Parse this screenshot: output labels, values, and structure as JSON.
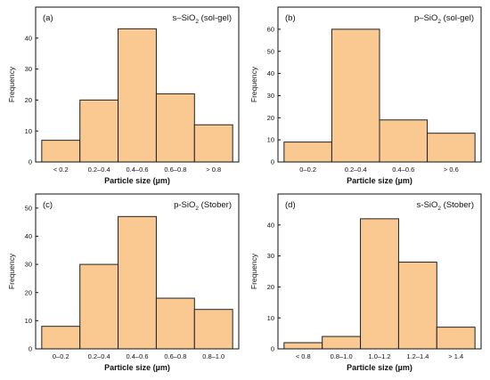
{
  "bar_color": "#f9c991",
  "chart_data": [
    {
      "type": "bar",
      "panel": "(a)",
      "title": "s–SiO2 (sol-gel)",
      "title_parts": {
        "pre": "s–SiO",
        "sub": "2",
        "post": " (sol-gel)"
      },
      "categories": [
        "< 0.2",
        "0.2–0.4",
        "0.4–0.6",
        "0.6–0.8",
        "> 0.8"
      ],
      "values": [
        7,
        20,
        43,
        22,
        12
      ],
      "xlabel": "Particle size (µm)",
      "ylabel": "Frequency",
      "ylim": [
        0,
        50
      ],
      "yticks": [
        0,
        10,
        20,
        30,
        40
      ],
      "ytick_labels": [
        "0",
        "10",
        "20",
        "30",
        "40"
      ],
      "grid": false
    },
    {
      "type": "bar",
      "panel": "(b)",
      "title": "p–SiO2 (sol-gel)",
      "title_parts": {
        "pre": "p–SiO",
        "sub": "2",
        "post": " (sol-gel)"
      },
      "categories": [
        "0–0.2",
        "0.2–0.4",
        "0.4–0.6",
        "> 0.6"
      ],
      "values": [
        9,
        60,
        19,
        13
      ],
      "xlabel": "Particle size (µm)",
      "ylabel": "Frequency",
      "ylim": [
        0,
        70
      ],
      "yticks": [
        0,
        10,
        20,
        30,
        40,
        50,
        60
      ],
      "ytick_labels": [
        "0",
        "10",
        "20",
        "30",
        "40",
        "50",
        "60"
      ],
      "grid": false
    },
    {
      "type": "bar",
      "panel": "(c)",
      "title": "p-SiO2 (Stober)",
      "title_parts": {
        "pre": "p-SiO",
        "sub": "2",
        "post": " (Stober)"
      },
      "categories": [
        "0–0.2",
        "0.2–0.4",
        "0.4–0.6",
        "0.6–0.8",
        "0.8–1.0"
      ],
      "values": [
        8,
        30,
        47,
        18,
        14
      ],
      "xlabel": "Particle size (µm)",
      "ylabel": "Frequency",
      "ylim": [
        0,
        55
      ],
      "yticks": [
        0,
        10,
        20,
        30,
        40,
        50
      ],
      "ytick_labels": [
        "0",
        "10",
        "20",
        "30",
        "40",
        "50"
      ],
      "grid": false
    },
    {
      "type": "bar",
      "panel": "(d)",
      "title": "s-SiO2 (Stober)",
      "title_parts": {
        "pre": "s-SiO",
        "sub": "2",
        "post": " (Stober)"
      },
      "categories": [
        "< 0.8",
        "0.8–1.0",
        "1.0–1.2",
        "1.2–1.4",
        "> 1.4"
      ],
      "values": [
        2,
        4,
        42,
        28,
        7
      ],
      "xlabel": "Particle size (µm)",
      "ylabel": "Frequency",
      "ylim": [
        0,
        50
      ],
      "yticks": [
        0,
        10,
        20,
        30,
        40
      ],
      "ytick_labels": [
        "0",
        "10",
        "20",
        "30",
        "40"
      ],
      "grid": false
    }
  ]
}
